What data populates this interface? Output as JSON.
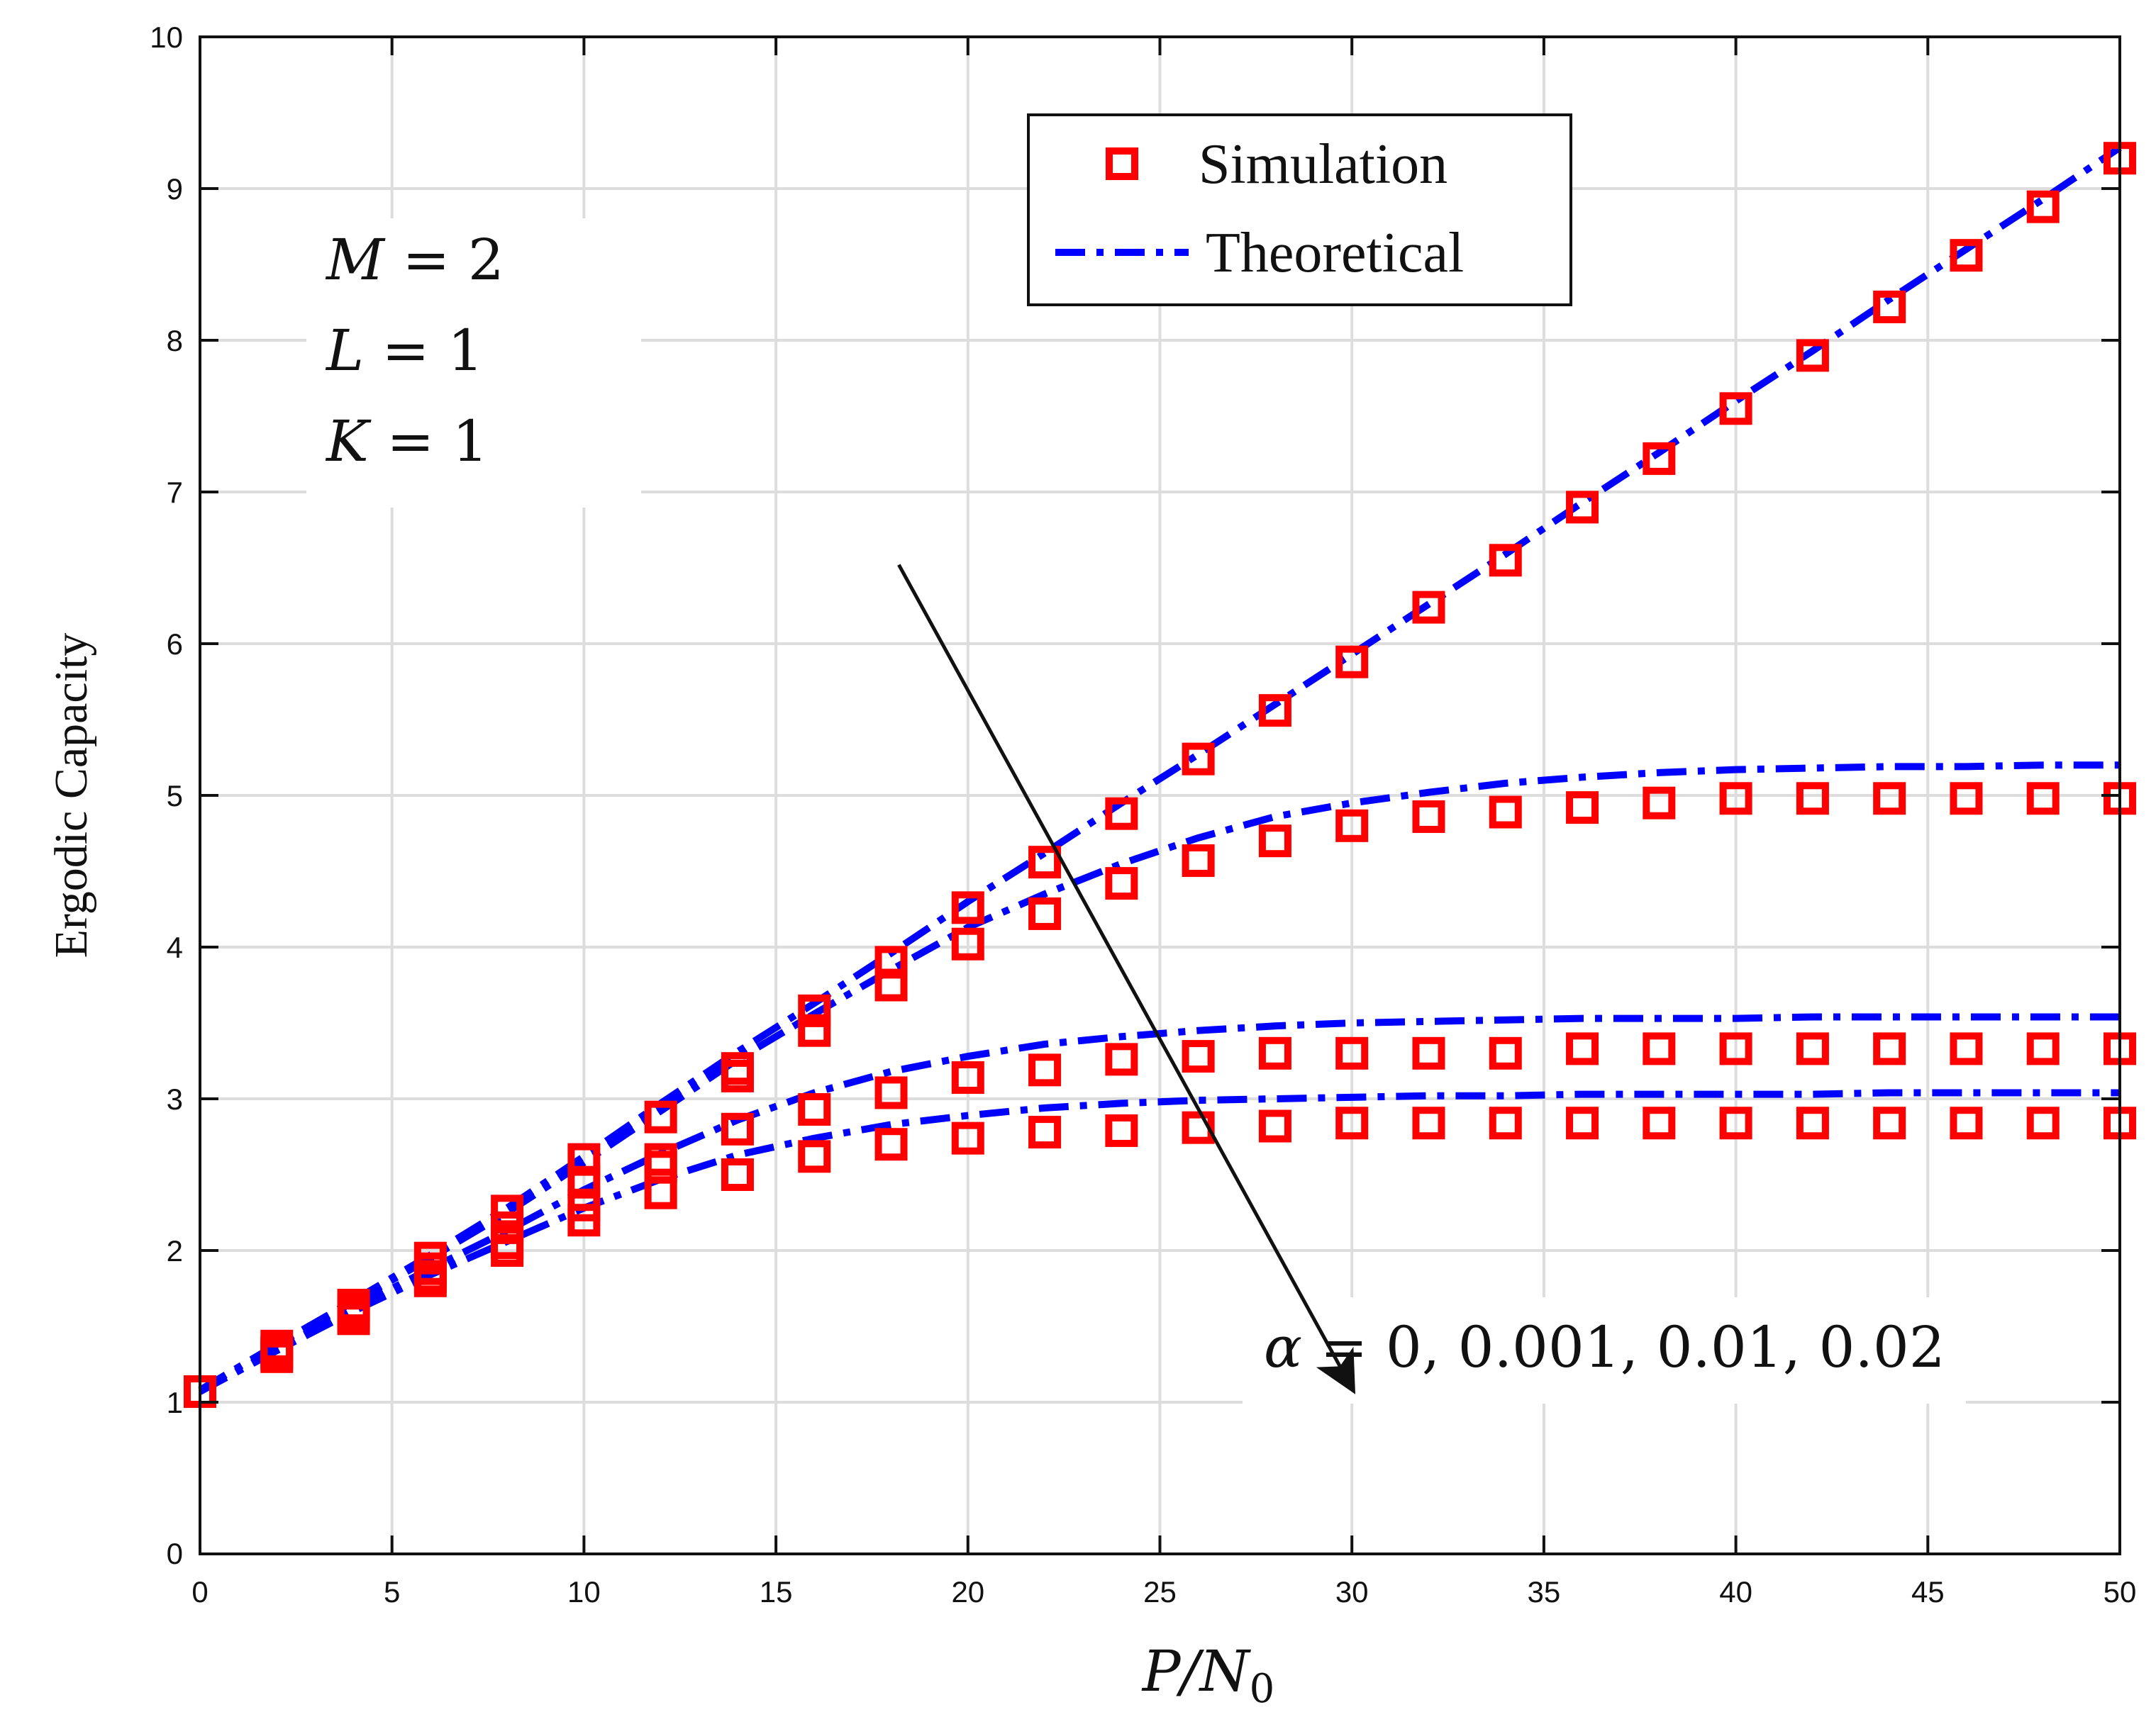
{
  "chart_data": {
    "type": "line",
    "title": "",
    "xlabel": "P/N₀",
    "ylabel": "Ergodic Capacity",
    "xlim": [
      0,
      50
    ],
    "ylim": [
      0,
      10
    ],
    "xticks": [
      0,
      5,
      10,
      15,
      20,
      25,
      30,
      35,
      40,
      45,
      50
    ],
    "yticks": [
      1,
      2,
      3,
      4,
      5,
      6,
      7,
      8,
      9,
      10
    ],
    "grid": true,
    "legend": {
      "position": "top-center",
      "entries": [
        {
          "label": "Simulation",
          "marker": "square",
          "color": "#ff0000"
        },
        {
          "label": "Theoretical",
          "line": "dash-dot",
          "color": "#0000ff"
        }
      ]
    },
    "x": [
      0,
      2,
      4,
      6,
      8,
      10,
      12,
      14,
      16,
      18,
      20,
      22,
      24,
      26,
      28,
      30,
      32,
      34,
      36,
      38,
      40,
      42,
      44,
      46,
      48,
      50
    ],
    "series": [
      {
        "name": "alpha = 0",
        "theoretical": [
          1.08,
          1.38,
          1.67,
          1.97,
          2.28,
          2.62,
          2.97,
          3.31,
          3.63,
          3.96,
          4.3,
          4.62,
          4.95,
          5.27,
          5.6,
          5.93,
          6.26,
          6.59,
          6.93,
          7.26,
          7.6,
          7.93,
          8.27,
          8.6,
          8.93,
          9.27
        ],
        "simulation": [
          1.07,
          1.37,
          1.64,
          1.95,
          2.26,
          2.6,
          2.88,
          3.2,
          3.58,
          3.9,
          4.26,
          4.56,
          4.88,
          5.24,
          5.56,
          5.88,
          6.24,
          6.55,
          6.9,
          7.22,
          7.55,
          7.9,
          8.22,
          8.56,
          8.88,
          9.2
        ]
      },
      {
        "name": "alpha = 0.001",
        "theoretical": [
          1.08,
          1.38,
          1.66,
          1.95,
          2.25,
          2.58,
          2.92,
          3.26,
          3.56,
          3.85,
          4.13,
          4.35,
          4.55,
          4.72,
          4.86,
          4.95,
          5.02,
          5.08,
          5.12,
          5.15,
          5.17,
          5.18,
          5.19,
          5.19,
          5.2,
          5.2
        ],
        "simulation": [
          1.07,
          1.33,
          1.6,
          1.88,
          2.15,
          2.45,
          2.6,
          3.15,
          3.45,
          3.75,
          4.02,
          4.22,
          4.42,
          4.57,
          4.7,
          4.8,
          4.86,
          4.89,
          4.92,
          4.95,
          4.98,
          4.98,
          4.98,
          4.98,
          4.98,
          4.98
        ]
      },
      {
        "name": "alpha = 0.01",
        "theoretical": [
          1.07,
          1.35,
          1.62,
          1.88,
          2.13,
          2.4,
          2.64,
          2.86,
          3.04,
          3.18,
          3.28,
          3.36,
          3.41,
          3.45,
          3.48,
          3.5,
          3.51,
          3.52,
          3.53,
          3.53,
          3.53,
          3.54,
          3.54,
          3.54,
          3.54,
          3.54
        ],
        "simulation": [
          1.07,
          1.32,
          1.57,
          1.83,
          2.05,
          2.3,
          2.55,
          2.8,
          2.93,
          3.04,
          3.14,
          3.19,
          3.26,
          3.28,
          3.3,
          3.3,
          3.3,
          3.3,
          3.33,
          3.33,
          3.33,
          3.33,
          3.33,
          3.33,
          3.33,
          3.33
        ]
      },
      {
        "name": "alpha = 0.02",
        "theoretical": [
          1.07,
          1.34,
          1.6,
          1.84,
          2.06,
          2.28,
          2.47,
          2.63,
          2.74,
          2.83,
          2.89,
          2.94,
          2.97,
          2.99,
          3.0,
          3.01,
          3.02,
          3.02,
          3.03,
          3.03,
          3.03,
          3.03,
          3.04,
          3.04,
          3.04,
          3.04
        ],
        "simulation": [
          1.07,
          1.3,
          1.55,
          1.8,
          2.0,
          2.2,
          2.38,
          2.5,
          2.62,
          2.7,
          2.74,
          2.78,
          2.79,
          2.81,
          2.82,
          2.84,
          2.84,
          2.84,
          2.84,
          2.84,
          2.84,
          2.84,
          2.84,
          2.84,
          2.84,
          2.84
        ]
      }
    ],
    "annotations": {
      "params": [
        "M = 2",
        "L = 1",
        "K = 1"
      ],
      "alpha_label": "α = 0, 0.001, 0.01, 0.02",
      "arrow": {
        "from": [
          18.2,
          6.52
        ],
        "to": [
          30,
          1.0
        ]
      }
    },
    "colors": {
      "simulation": "#ff0000",
      "theoretical": "#0000ff",
      "grid": "#dddddd",
      "axis": "#111111"
    }
  }
}
